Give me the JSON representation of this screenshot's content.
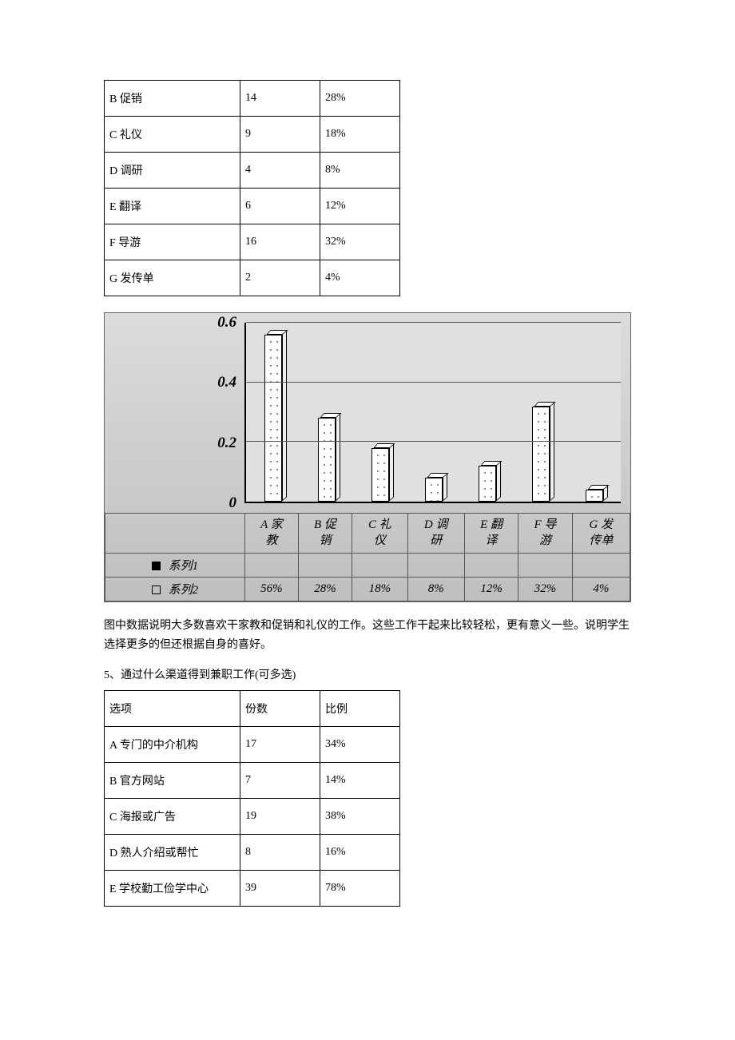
{
  "table1": {
    "col_widths_class": [
      "col-a",
      "col-b",
      "col-c"
    ],
    "rows": [
      {
        "label": "B 促销",
        "count": "14",
        "pct": "28%"
      },
      {
        "label": "C 礼仪",
        "count": "9",
        "pct": "18%"
      },
      {
        "label": "D 调研",
        "count": "4",
        "pct": "8%"
      },
      {
        "label": "E 翻译",
        "count": "6",
        "pct": "12%"
      },
      {
        "label": "F 导游",
        "count": "16",
        "pct": "32%"
      },
      {
        "label": "G 发传单",
        "count": "2",
        "pct": "4%"
      }
    ]
  },
  "chart": {
    "type": "bar",
    "ylim_max": 0.6,
    "yticks": [
      {
        "label": "0.6",
        "frac": 1.0
      },
      {
        "label": "0.4",
        "frac": 0.6667
      },
      {
        "label": "0.2",
        "frac": 0.3333
      },
      {
        "label": "0",
        "frac": 0.0
      }
    ],
    "plot_bg": "#e0e0e0",
    "outer_bg_from": "#dcdcdc",
    "outer_bg_to": "#bfbfbf",
    "gridline_color": "#555555",
    "bar_face_color": "#ffffff",
    "bar_dot_color": "#888888",
    "axis_color": "#000000",
    "axis_label_fontsize": 19,
    "axis_label_fontstyle": "italic bold",
    "cat_fontsize": 15,
    "cat_fontstyle": "italic",
    "categories": [
      {
        "line1": "A 家",
        "line2": "教",
        "value": 0.56,
        "pct": "56%"
      },
      {
        "line1": "B 促",
        "line2": "销",
        "value": 0.28,
        "pct": "28%"
      },
      {
        "line1": "C 礼",
        "line2": "仪",
        "value": 0.18,
        "pct": "18%"
      },
      {
        "line1": "D 调",
        "line2": "研",
        "value": 0.08,
        "pct": "8%"
      },
      {
        "line1": "E 翻",
        "line2": "译",
        "value": 0.12,
        "pct": "12%"
      },
      {
        "line1": "F 导",
        "line2": "游",
        "value": 0.32,
        "pct": "32%"
      },
      {
        "line1": "G 发",
        "line2": "传单",
        "value": 0.04,
        "pct": "4%"
      }
    ],
    "series1_label": "系列1",
    "series2_label": "系列2"
  },
  "paragraph1": "图中数据说明大多数喜欢干家教和促销和礼仪的工作。这些工作干起来比较轻松，更有意义一些。说明学生选择更多的但还根据自身的喜好。",
  "question5_title": "5、通过什么渠道得到兼职工作(可多选)",
  "table2": {
    "header": {
      "c1": "选项",
      "c2": "份数",
      "c3": "比例"
    },
    "rows": [
      {
        "label": "A 专门的中介机构",
        "count": "17",
        "pct": "34%"
      },
      {
        "label": "B 官方网站",
        "count": "7",
        "pct": "14%"
      },
      {
        "label": "C 海报或广告",
        "count": "19",
        "pct": "38%"
      },
      {
        "label": "D 熟人介绍或帮忙",
        "count": "8",
        "pct": "16%"
      },
      {
        "label": "E 学校勤工俭学中心",
        "count": "39",
        "pct": "78%"
      }
    ]
  }
}
